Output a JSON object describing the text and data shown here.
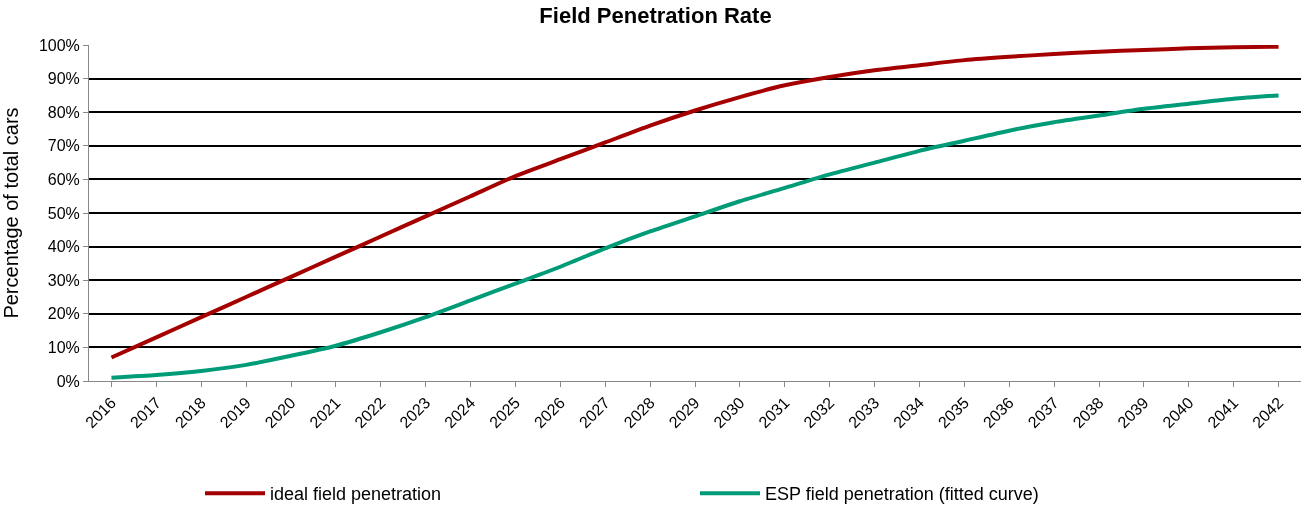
{
  "chart_data": {
    "type": "line",
    "title": "Field Penetration Rate",
    "ylabel": "Percentage of total cars",
    "categories": [
      "2016",
      "2017",
      "2018",
      "2019",
      "2020",
      "2021",
      "2022",
      "2023",
      "2024",
      "2025",
      "2026",
      "2027",
      "2028",
      "2029",
      "2030",
      "2031",
      "2032",
      "2033",
      "2034",
      "2035",
      "2036",
      "2037",
      "2038",
      "2039",
      "2040",
      "2041",
      "2042"
    ],
    "series": [
      {
        "name": "ideal field penetration",
        "color": "#a50000",
        "values": [
          7,
          13,
          19,
          25,
          31,
          37,
          43,
          49,
          55,
          61,
          66,
          71,
          76,
          80.5,
          84.5,
          88,
          90.5,
          92.5,
          94,
          95.5,
          96.5,
          97.3,
          98,
          98.5,
          99,
          99.3,
          99.5
        ]
      },
      {
        "name": "ESP field penetration (fitted curve)",
        "color": "#009b77",
        "values": [
          1,
          1.8,
          3,
          4.8,
          7.5,
          10.5,
          14.5,
          19,
          24,
          29,
          34,
          39.5,
          44.5,
          49,
          53.5,
          57.5,
          61.5,
          65,
          68.5,
          71.5,
          74.5,
          77,
          79,
          81,
          82.5,
          84,
          85
        ]
      }
    ],
    "ylim": [
      0,
      100
    ],
    "yticks": [
      {
        "value": 0,
        "label": "0%"
      },
      {
        "value": 10,
        "label": "10%"
      },
      {
        "value": 20,
        "label": "20%"
      },
      {
        "value": 30,
        "label": "30%"
      },
      {
        "value": 40,
        "label": "40%"
      },
      {
        "value": 50,
        "label": "50%"
      },
      {
        "value": 60,
        "label": "60%"
      },
      {
        "value": 70,
        "label": "70%"
      },
      {
        "value": 80,
        "label": "80%"
      },
      {
        "value": 90,
        "label": "90%"
      },
      {
        "value": 100,
        "label": "100%"
      }
    ],
    "grid": "y",
    "legend": "bottom",
    "marker": "none",
    "line_style": "solid"
  }
}
